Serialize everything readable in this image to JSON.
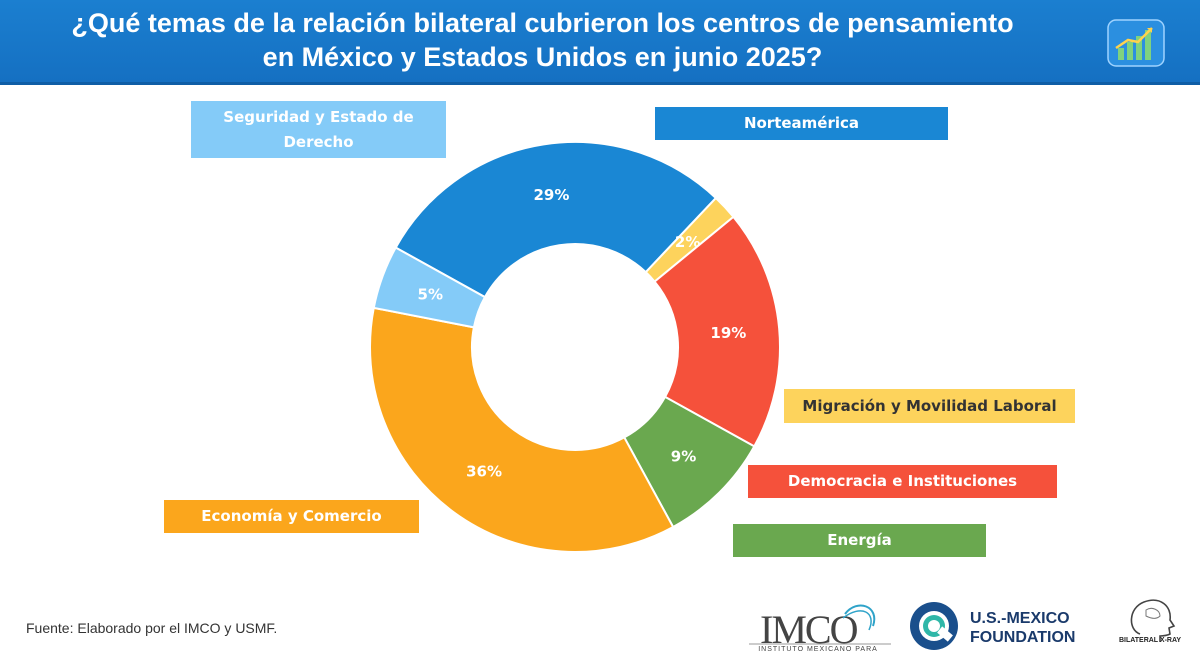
{
  "header": {
    "title_line1": "¿Qué temas de la relación bilateral cubrieron los centros de pensamiento",
    "title_line2": "en México y Estados Unidos en junio 2025?",
    "icon": "bar-chart-growth-icon"
  },
  "chart_data": {
    "type": "pie",
    "donut": true,
    "title": "¿Qué temas de la relación bilateral cubrieron los centros de pensamiento en México y Estados Unidos en junio 2025?",
    "categories": [
      "Norteamérica",
      "Migración y Movilidad Laboral",
      "Democracia e Instituciones",
      "Energía",
      "Economía y Comercio",
      "Seguridad y Estado de Derecho"
    ],
    "values": [
      29,
      2,
      19,
      9,
      36,
      5
    ],
    "labels": [
      "29%",
      "2%",
      "19%",
      "9%",
      "36%",
      "5%"
    ],
    "unit": "%",
    "colors": [
      "#1a87d4",
      "#fdd35c",
      "#f5513b",
      "#6aa84f",
      "#fba61c",
      "#84cbf8"
    ],
    "label_colors": [
      "#ffffff",
      "#ffffff",
      "#ffffff",
      "#ffffff",
      "#ffffff",
      "#ffffff"
    ],
    "legend_text_colors": [
      "#ffffff",
      "#333333",
      "#ffffff",
      "#ffffff",
      "#ffffff",
      "#ffffff"
    ]
  },
  "footer": {
    "source": "Fuente: Elaborado por el IMCO y USMF.",
    "imco_logo_text": "IMCO",
    "imco_logo_sub": "INSTITUTO MEXICANO PARA",
    "usmf_line1": "U.S.-MEXICO",
    "usmf_line2": "FOUNDATION",
    "xray_label": "BILATERAL X-RAY"
  }
}
